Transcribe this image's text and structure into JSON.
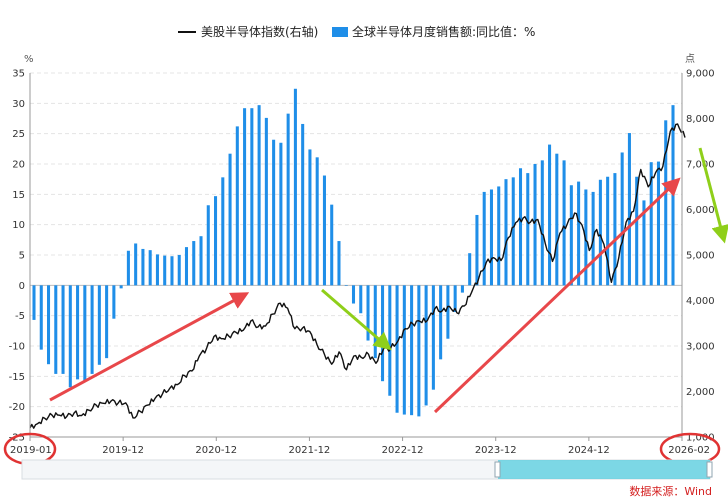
{
  "chart_data": {
    "type": "bar+line",
    "legend": {
      "line_label": "美股半导体指数(右轴)",
      "bar_label": "全球半导体月度销售额:同比值：%"
    },
    "left_axis": {
      "unit": "%",
      "ylim": [
        -25,
        35
      ],
      "ticks": [
        35,
        30,
        25,
        20,
        15,
        10,
        5,
        0,
        -5,
        -10,
        -15,
        -20,
        -25
      ]
    },
    "right_axis": {
      "unit": "点",
      "ylim": [
        1000,
        9000
      ],
      "ticks": [
        "9,000",
        "8,000",
        "7,000",
        "6,000",
        "5,000",
        "4,000",
        "3,000",
        "2,000",
        "1,000"
      ]
    },
    "x_axis": {
      "tick_labels": [
        "2019-01",
        "2019-12",
        "2020-12",
        "2021-12",
        "2022-12",
        "2023-12",
        "2024-12",
        "2026-02"
      ]
    },
    "grid": true,
    "colors": {
      "bar": "#1f8ee8",
      "line": "#111111",
      "arrow_red": "#e8474a",
      "arrow_green": "#8fcf1a",
      "circle": "#e03333",
      "slider": "#5ecfe0"
    },
    "bars": {
      "start_month": "2019-01",
      "values": [
        -5.7,
        -10.6,
        -13.0,
        -14.6,
        -14.6,
        -16.8,
        -15.5,
        -15.9,
        -14.6,
        -13.1,
        -12.0,
        -5.5,
        -0.5,
        5.7,
        6.9,
        6.0,
        5.8,
        5.1,
        4.9,
        4.8,
        5.0,
        6.3,
        7.3,
        8.1,
        13.2,
        14.7,
        17.8,
        21.7,
        26.2,
        29.2,
        29.2,
        29.7,
        27.6,
        24.0,
        23.5,
        28.3,
        32.4,
        26.6,
        22.4,
        21.1,
        18.1,
        13.3,
        7.3,
        0.0,
        -3.0,
        -4.6,
        -9.1,
        -12.0,
        -15.8,
        -18.2,
        -21.0,
        -21.3,
        -21.4,
        -21.6,
        -19.8,
        -17.2,
        -12.2,
        -8.8,
        -4.4,
        -1.2,
        5.3,
        11.6,
        15.4,
        15.8,
        16.3,
        17.5,
        17.8,
        19.3,
        18.5,
        20.0,
        20.6,
        23.2,
        21.7,
        20.6,
        16.5,
        17.1,
        15.8,
        15.4,
        17.4,
        17.9,
        18.5,
        21.9,
        25.1,
        17.9,
        14.0,
        20.3,
        20.4,
        27.2,
        29.7
      ]
    },
    "index_series": {
      "start": "2019-01",
      "end": "2026-02",
      "values": [
        1200,
        1290,
        1410,
        1480,
        1480,
        1450,
        1530,
        1470,
        1590,
        1700,
        1740,
        1790,
        1750,
        1750,
        1420,
        1560,
        1700,
        1850,
        1950,
        2070,
        2150,
        2350,
        2450,
        2780,
        2950,
        3210,
        3160,
        3220,
        3300,
        3350,
        3550,
        3420,
        3440,
        3700,
        3940,
        3830,
        3380,
        3390,
        3320,
        3030,
        2820,
        2600,
        2870,
        2480,
        2780,
        2750,
        2820,
        2620,
        2930,
        2950,
        3110,
        3380,
        3490,
        3540,
        3560,
        3820,
        3770,
        3870,
        3730,
        3880,
        4180,
        4500,
        4840,
        4940,
        4880,
        5380,
        5710,
        5810,
        5720,
        5780,
        5260,
        4860,
        5480,
        5680,
        5920,
        5660,
        5100,
        5560,
        5230,
        4400,
        4940,
        5720,
        5960,
        6880,
        6500,
        6810,
        6950,
        7720,
        7880,
        7580
      ]
    },
    "annotations": {
      "source_text": "数据来源：Wind"
    }
  }
}
